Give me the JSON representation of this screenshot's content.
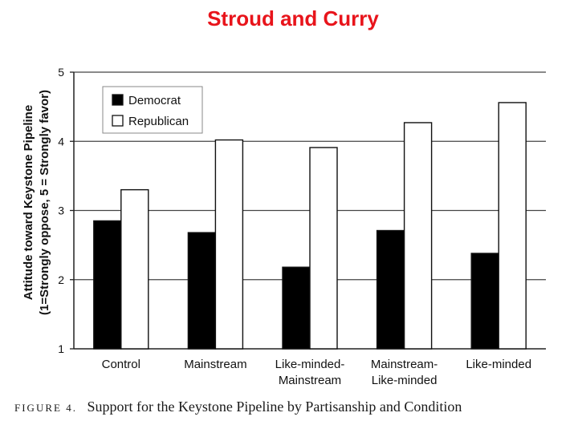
{
  "slide": {
    "title": "Stroud and Curry"
  },
  "caption": {
    "figure_label": "FIGURE 4.",
    "text": "Support for the Keystone Pipeline by Partisanship and Condition"
  },
  "chart_data": {
    "type": "bar",
    "title": "",
    "xlabel": "",
    "ylabel": [
      "Attitude toward Keystone Pipeline",
      "(1=Strongly oppose, 5 = Strongly favor)"
    ],
    "ylim": [
      1,
      5
    ],
    "yticks": [
      1,
      2,
      3,
      4,
      5
    ],
    "grid": true,
    "legend_position": "top-left",
    "categories": [
      [
        "Control"
      ],
      [
        "Mainstream"
      ],
      [
        "Like-minded-",
        "Mainstream"
      ],
      [
        "Mainstream-",
        "Like-minded"
      ],
      [
        "Like-minded"
      ]
    ],
    "series": [
      {
        "name": "Democrat",
        "color": "#000000",
        "values": [
          2.85,
          2.68,
          2.18,
          2.71,
          2.38
        ]
      },
      {
        "name": "Republican",
        "color": "#ffffff",
        "values": [
          3.3,
          4.02,
          3.91,
          4.27,
          4.56
        ]
      }
    ]
  }
}
